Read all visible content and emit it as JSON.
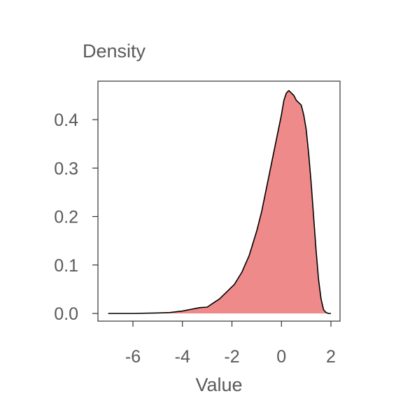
{
  "chart_data": {
    "type": "area",
    "title": "",
    "ylabel": "Density",
    "xlabel": "Value",
    "xlim": [
      -7.0,
      2.0
    ],
    "ylim": [
      0.0,
      0.46
    ],
    "xticks": [
      -6,
      -4,
      -2,
      0,
      2
    ],
    "yticks": [
      0.0,
      0.1,
      0.2,
      0.3,
      0.4
    ],
    "ytick_labels": [
      "0.0",
      "0.1",
      "0.2",
      "0.3",
      "0.4"
    ],
    "grid": false,
    "fill_color": "#ef8a8a",
    "line_color": "#000000",
    "series": [
      {
        "x": [
          -7.0,
          -6.0,
          -5.0,
          -4.5,
          -4.0,
          -3.6,
          -3.3,
          -3.0,
          -2.8,
          -2.5,
          -2.2,
          -1.9,
          -1.6,
          -1.3,
          -1.0,
          -0.8,
          -0.6,
          -0.4,
          -0.2,
          0.0,
          0.1,
          0.2,
          0.3,
          0.4,
          0.5,
          0.6,
          0.8,
          0.9,
          1.0,
          1.1,
          1.2,
          1.3,
          1.4,
          1.5,
          1.6,
          1.7,
          1.8,
          1.9,
          2.0
        ],
        "y": [
          0.0,
          0.0,
          0.001,
          0.002,
          0.005,
          0.009,
          0.012,
          0.013,
          0.02,
          0.03,
          0.045,
          0.06,
          0.085,
          0.12,
          0.17,
          0.21,
          0.26,
          0.31,
          0.36,
          0.41,
          0.44,
          0.455,
          0.46,
          0.455,
          0.45,
          0.44,
          0.43,
          0.41,
          0.38,
          0.33,
          0.27,
          0.2,
          0.13,
          0.07,
          0.03,
          0.008,
          0.002,
          0.0,
          0.0
        ]
      }
    ]
  }
}
